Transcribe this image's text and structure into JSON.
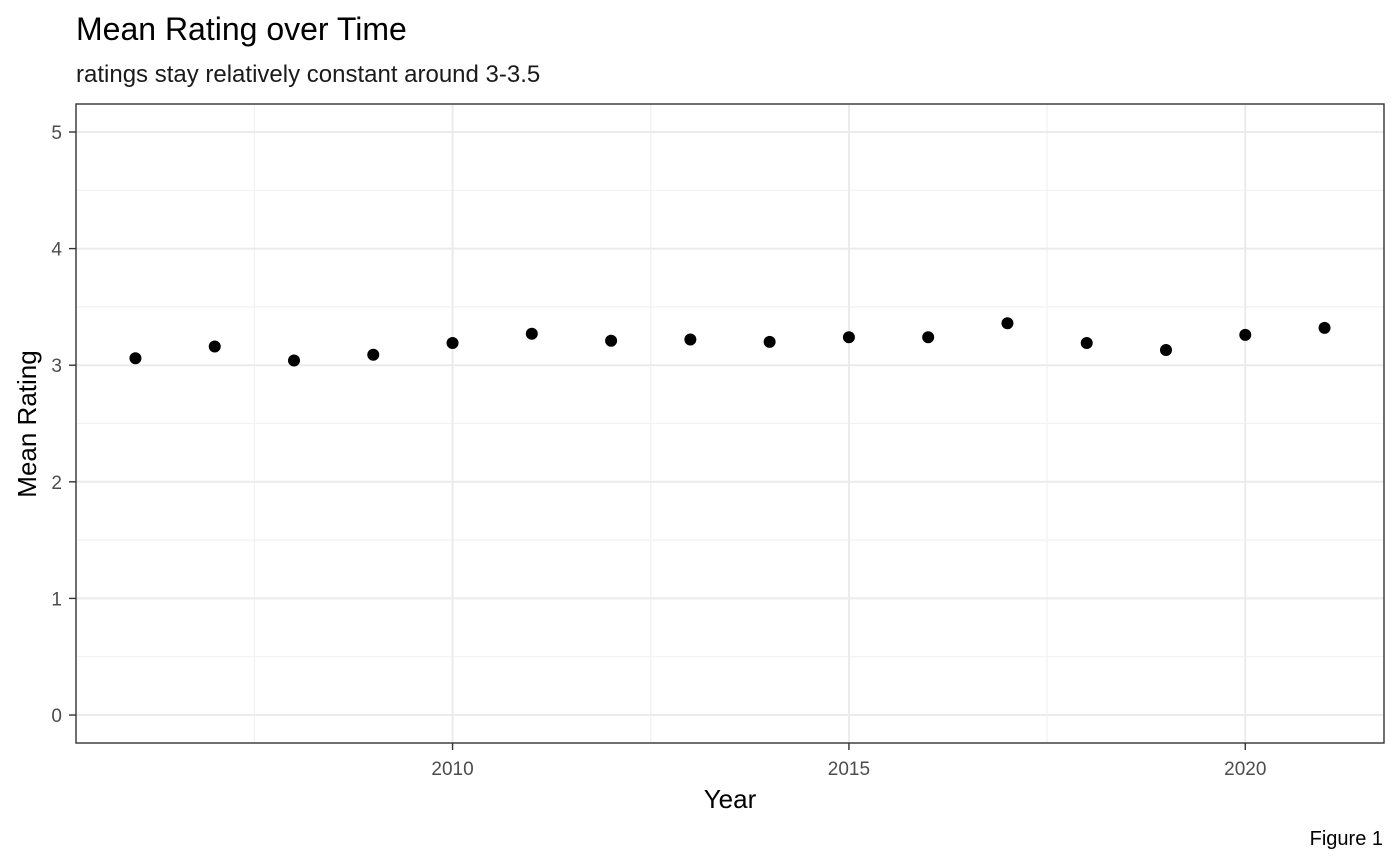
{
  "chart_data": {
    "type": "scatter",
    "title": "Mean Rating over Time",
    "subtitle": "ratings stay relatively constant around 3-3.5",
    "xlabel": "Year",
    "ylabel": "Mean Rating",
    "caption": "Figure 1",
    "xlim": [
      2005.25,
      2021.75
    ],
    "ylim": [
      -0.24,
      5.24
    ],
    "x_ticks": [
      2010,
      2015,
      2020
    ],
    "y_ticks": [
      0,
      1,
      2,
      3,
      4,
      5
    ],
    "x_minor_ticks": [
      2007.5,
      2012.5,
      2017.5
    ],
    "y_minor_ticks": [
      0.5,
      1.5,
      2.5,
      3.5,
      4.5
    ],
    "grid": true,
    "legend": "none",
    "point_color": "#000000",
    "x": [
      2006,
      2007,
      2008,
      2009,
      2010,
      2011,
      2012,
      2013,
      2014,
      2015,
      2016,
      2017,
      2018,
      2019,
      2020,
      2021
    ],
    "y": [
      3.06,
      3.16,
      3.04,
      3.09,
      3.19,
      3.27,
      3.21,
      3.22,
      3.2,
      3.24,
      3.24,
      3.36,
      3.19,
      3.13,
      3.26,
      3.32
    ]
  }
}
